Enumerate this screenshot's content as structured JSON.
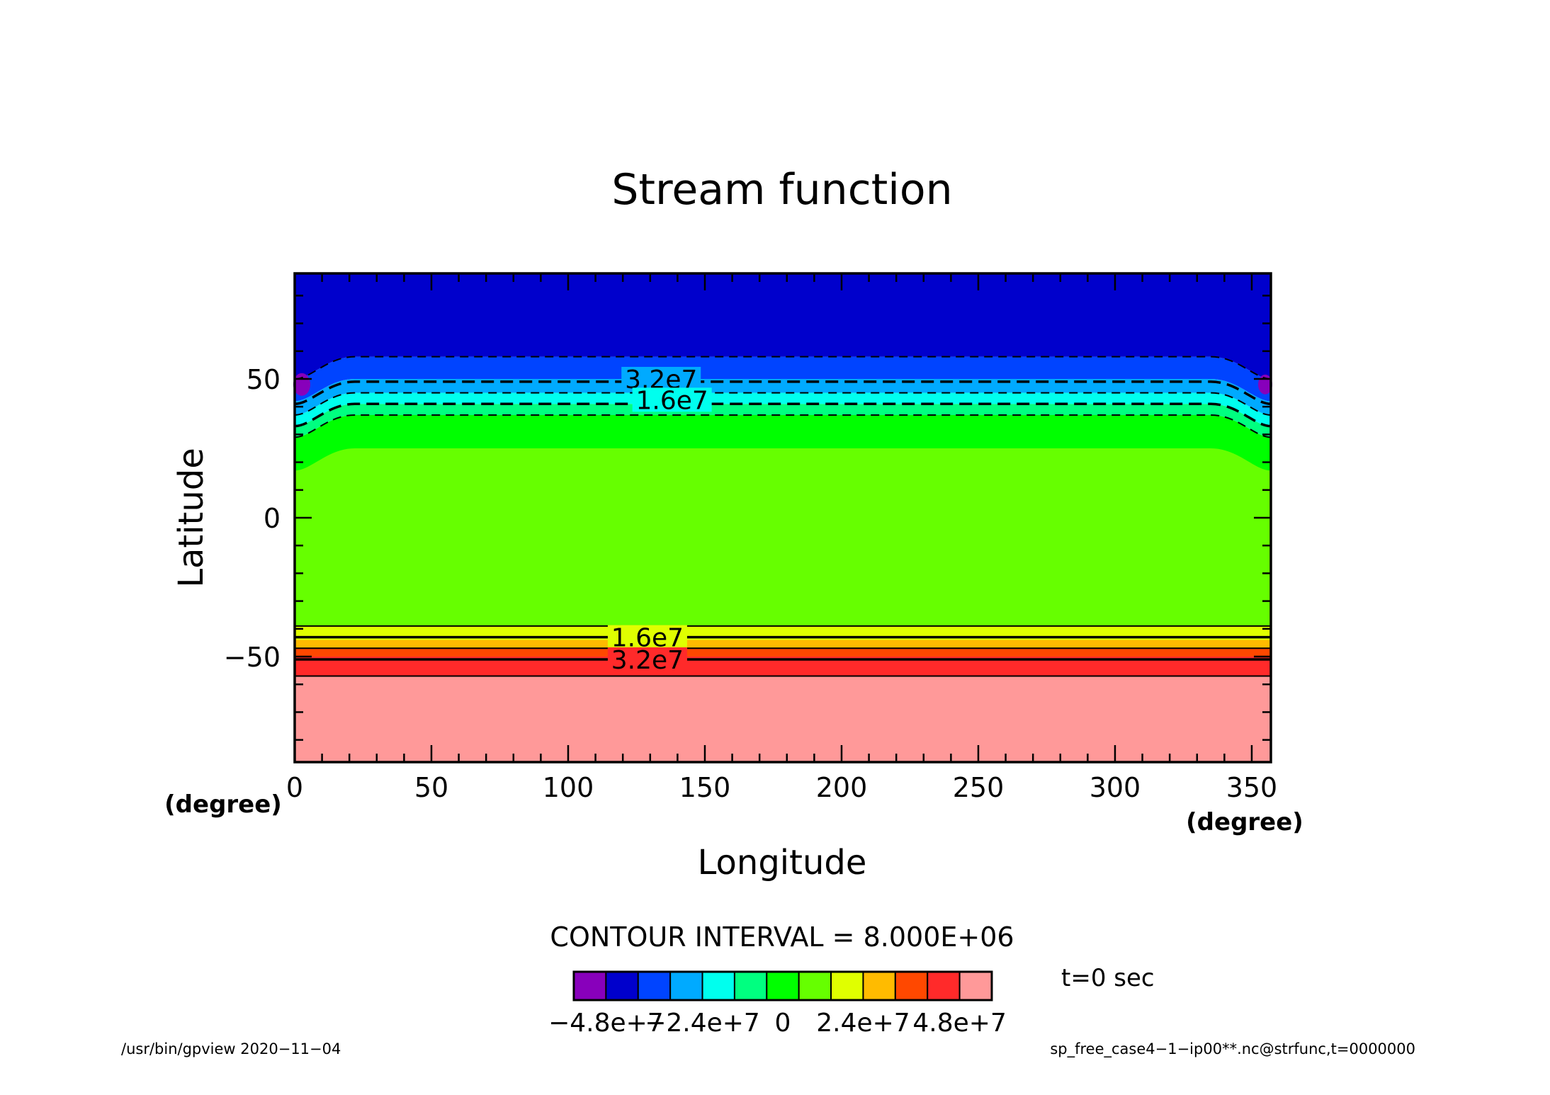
{
  "chart_data": {
    "type": "heatmap",
    "title": "Stream function",
    "xlabel": "Longitude",
    "ylabel": "Latitude",
    "x_unit": "(degree)",
    "y_unit": "(degree)",
    "xlim": [
      0,
      357
    ],
    "ylim": [
      -88,
      88
    ],
    "x_ticks": [
      0,
      50,
      100,
      150,
      200,
      250,
      300,
      350
    ],
    "y_ticks": [
      50,
      0,
      -50
    ],
    "x_tick_labels": [
      "0",
      "50",
      "100",
      "150",
      "200",
      "250",
      "300",
      "350"
    ],
    "y_tick_labels": [
      "50",
      "0",
      "−50"
    ],
    "grid": false,
    "color_bands": [
      {
        "from_lat": -88,
        "to_lat": -57,
        "color": "#ff9999"
      },
      {
        "from_lat": -57,
        "to_lat": -50,
        "color": "#ff2a2a"
      },
      {
        "from_lat": -50,
        "to_lat": -47,
        "color": "#ff4800"
      },
      {
        "from_lat": -47,
        "to_lat": -44,
        "color": "#ffbb00"
      },
      {
        "from_lat": -44,
        "to_lat": -39,
        "color": "#e0ff00"
      },
      {
        "from_lat": -39,
        "to_lat": 25,
        "color": "#66ff00"
      },
      {
        "from_lat": 25,
        "to_lat": 37,
        "color": "#00ff00"
      },
      {
        "from_lat": 37,
        "to_lat": 41,
        "color": "#00ff80"
      },
      {
        "from_lat": 41,
        "to_lat": 45,
        "color": "#00ffee"
      },
      {
        "from_lat": 45,
        "to_lat": 50,
        "color": "#00aaff"
      },
      {
        "from_lat": 50,
        "to_lat": 58,
        "color": "#0044ff"
      },
      {
        "from_lat": 58,
        "to_lat": 88,
        "color": "#0000cc"
      }
    ],
    "positive_contours_lat": [
      -39,
      -43,
      -47,
      -51,
      -57
    ],
    "negative_contours_lat": [
      37,
      41,
      45,
      49,
      58
    ],
    "contour_labels": [
      {
        "text": "3.2e7",
        "lon": 134,
        "lat": 50
      },
      {
        "text": "1.6e7",
        "lon": 138,
        "lat": 42.5
      },
      {
        "text": "1.6e7",
        "lon": 129,
        "lat": -43
      },
      {
        "text": "3.2e7",
        "lon": 129,
        "lat": -51
      }
    ],
    "contour_interval_text": "CONTOUR INTERVAL = 8.000E+06",
    "colorbar": {
      "colors": [
        "#8800bb",
        "#0000cc",
        "#0044ff",
        "#00aaff",
        "#00ffee",
        "#00ff80",
        "#00ff00",
        "#66ff00",
        "#e0ff00",
        "#ffbb00",
        "#ff4800",
        "#ff2a2a",
        "#ff9999"
      ],
      "tick_labels": [
        "−4.8e+7",
        "−2.4e+7",
        "0",
        "2.4e+7",
        "4.8e+7"
      ],
      "tick_boundary_index": [
        1,
        4,
        6.5,
        9,
        12
      ]
    },
    "time_label": "t=0 sec"
  },
  "footer": {
    "left": "/usr/bin/gpview   2020−11−04",
    "right": "sp_free_case4−1−ip00**.nc@strfunc,t=0000000"
  }
}
